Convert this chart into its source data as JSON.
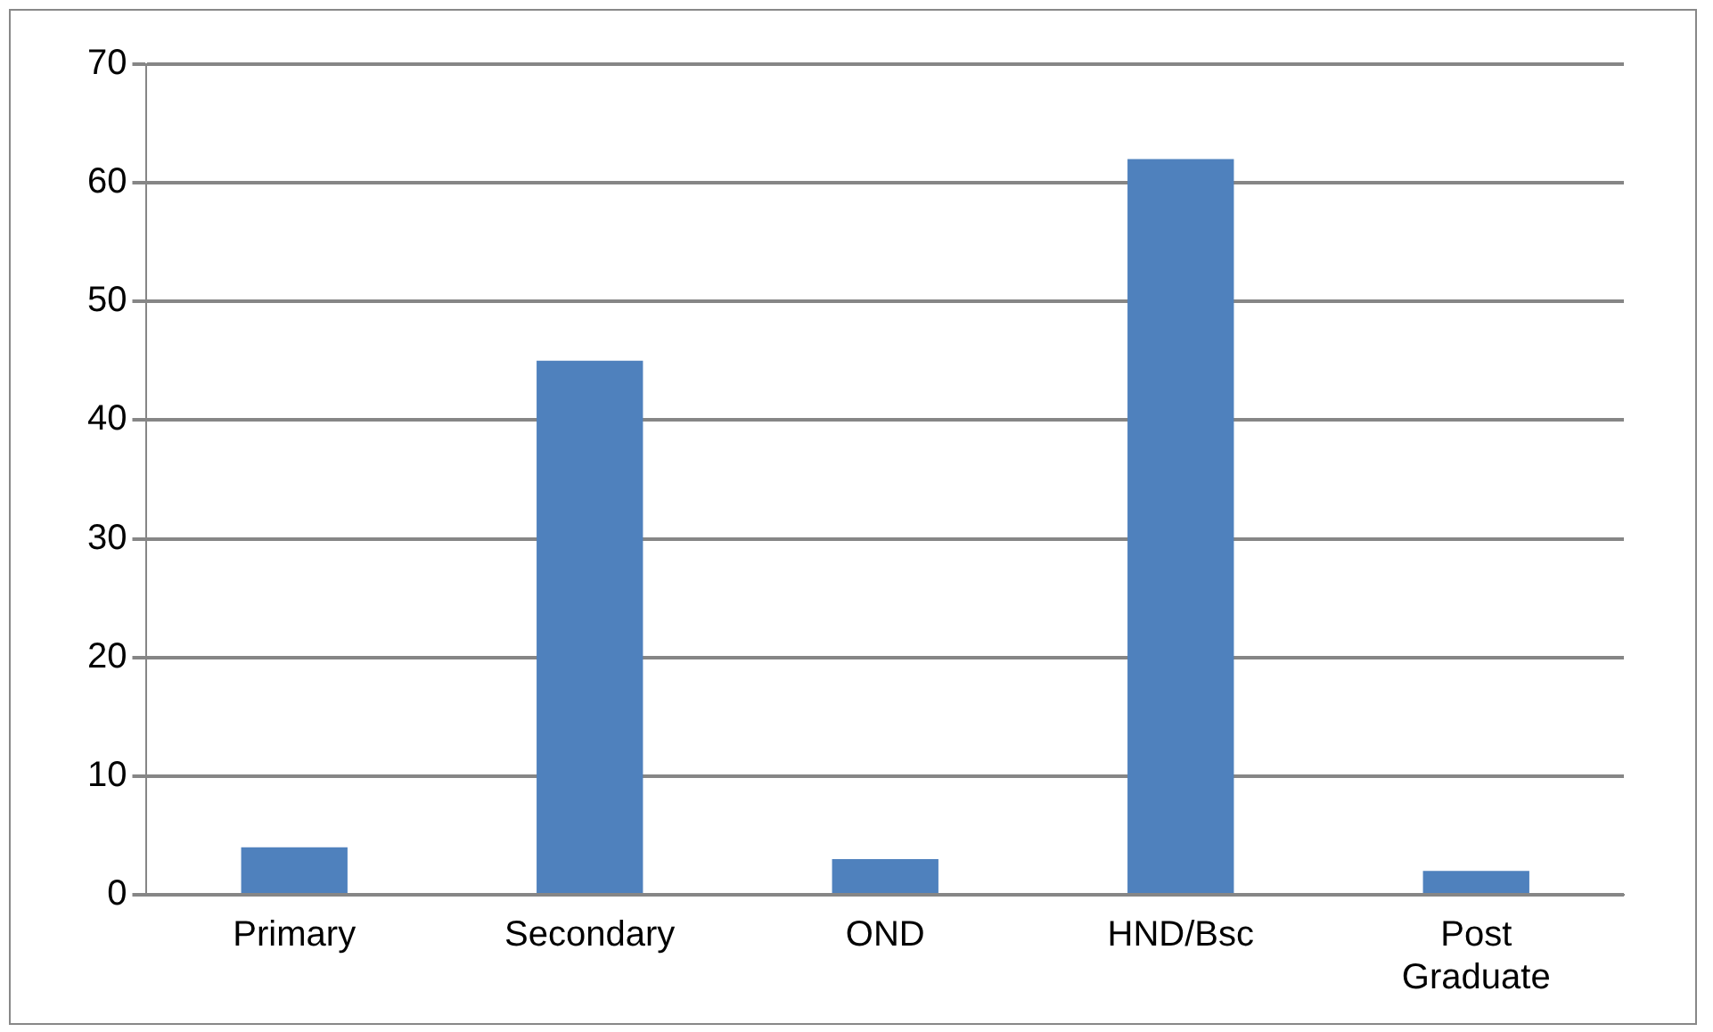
{
  "chart_data": {
    "type": "bar",
    "categories": [
      "Primary",
      "Secondary",
      "OND",
      "HND/Bsc",
      "Post Graduate"
    ],
    "values": [
      4,
      45,
      3,
      62,
      2
    ],
    "color": "#4f81bd",
    "ylim": [
      0,
      70
    ],
    "yticks": [
      0,
      10,
      20,
      30,
      40,
      50,
      60,
      70
    ],
    "grid": "y"
  }
}
